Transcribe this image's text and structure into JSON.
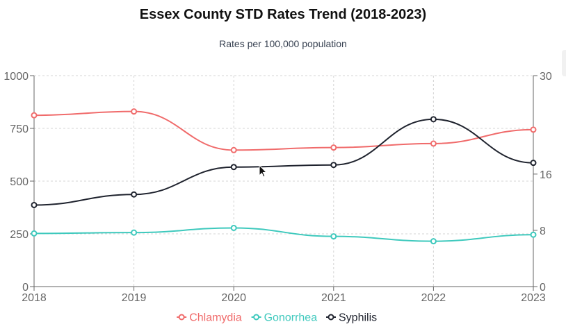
{
  "chart_data": {
    "type": "line",
    "title": "Essex County STD Rates Trend (2018-2023)",
    "subtitle": "Rates per 100,000 population",
    "x": [
      "2018",
      "2019",
      "2020",
      "2021",
      "2022",
      "2023"
    ],
    "y_left": {
      "min": 0,
      "max": 1000,
      "ticks": [
        0,
        250,
        500,
        750,
        1000
      ]
    },
    "y_right": {
      "min": 0,
      "max": 30,
      "ticks": [
        0,
        8,
        16,
        30
      ]
    },
    "grid": true,
    "legend_position": "bottom",
    "series": [
      {
        "name": "Chlamydia",
        "axis": "left",
        "color": "#f06b6b",
        "values": [
          812,
          830,
          647,
          659,
          678,
          744
        ]
      },
      {
        "name": "Gonorrhea",
        "axis": "left",
        "color": "#3ec9bd",
        "values": [
          252,
          256,
          278,
          238,
          215,
          246
        ]
      },
      {
        "name": "Syphilis",
        "axis": "right",
        "color": "#1f232e",
        "values": [
          11.6,
          13.1,
          17.0,
          17.3,
          23.8,
          17.6
        ]
      }
    ]
  }
}
